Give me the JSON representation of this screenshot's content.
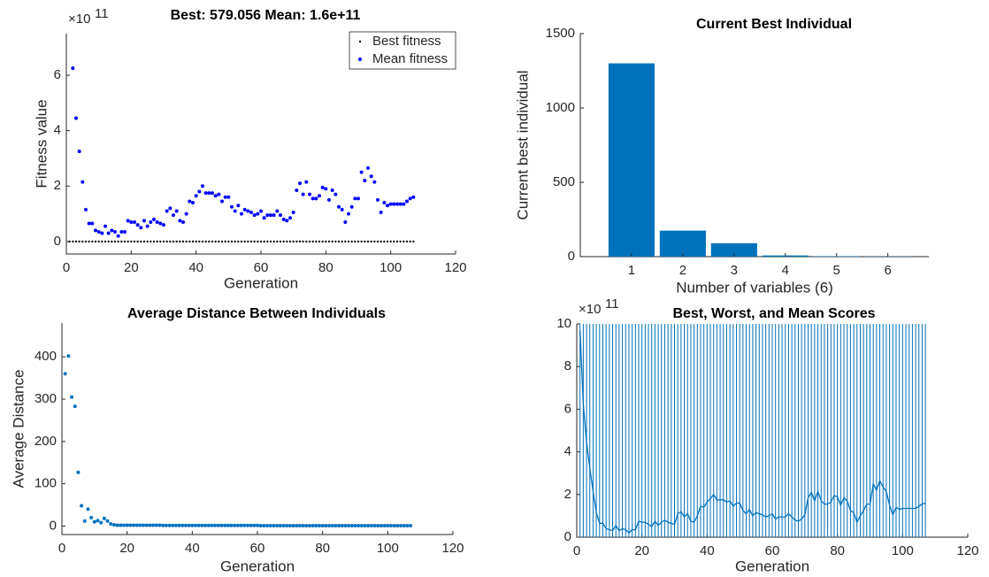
{
  "chart_data": [
    {
      "type": "scatter",
      "title": "Best: 579.056 Mean: 1.6e+11",
      "xlabel": "Generation",
      "ylabel": "Fitness value",
      "exponent_base": "×10",
      "exponent_power": "11",
      "legend": "upper right",
      "x": [
        1,
        2,
        3,
        4,
        5,
        6,
        7,
        8,
        9,
        10,
        11,
        12,
        13,
        14,
        15,
        16,
        17,
        18,
        19,
        20,
        21,
        22,
        23,
        24,
        25,
        26,
        27,
        28,
        29,
        30,
        31,
        32,
        33,
        34,
        35,
        36,
        37,
        38,
        39,
        40,
        41,
        42,
        43,
        44,
        45,
        46,
        47,
        48,
        49,
        50,
        51,
        52,
        53,
        54,
        55,
        56,
        57,
        58,
        59,
        60,
        61,
        62,
        63,
        64,
        65,
        66,
        67,
        68,
        69,
        70,
        71,
        72,
        73,
        74,
        75,
        76,
        77,
        78,
        79,
        80,
        81,
        82,
        83,
        84,
        85,
        86,
        87,
        88,
        89,
        90,
        91,
        92,
        93,
        94,
        95,
        96,
        97,
        98,
        99,
        100,
        101,
        102,
        103,
        104,
        105,
        106,
        107
      ],
      "series": [
        {
          "name": "Best fitness",
          "color": "#000000",
          "marker_size": 1.2,
          "values": [
            0,
            0,
            0,
            0,
            0,
            0,
            0,
            0,
            0,
            0,
            0,
            0,
            0,
            0,
            0,
            0,
            0,
            0,
            0,
            0,
            0,
            0,
            0,
            0,
            0,
            0,
            0,
            0,
            0,
            0,
            0,
            0,
            0,
            0,
            0,
            0,
            0,
            0,
            0,
            0,
            0,
            0,
            0,
            0,
            0,
            0,
            0,
            0,
            0,
            0,
            0,
            0,
            0,
            0,
            0,
            0,
            0,
            0,
            0,
            0,
            0,
            0,
            0,
            0,
            0,
            0,
            0,
            0,
            0,
            0,
            0,
            0,
            0,
            0,
            0,
            0,
            0,
            0,
            0,
            0,
            0,
            0,
            0,
            0,
            0,
            0,
            0,
            0,
            0,
            0,
            0,
            0,
            0,
            0,
            0,
            0,
            0,
            0,
            0,
            0,
            0,
            0,
            0,
            0,
            0,
            0,
            0
          ]
        },
        {
          "name": "Mean fitness",
          "color": "#0000ff",
          "marker_size": 2,
          "values": [
            null,
            6.25,
            4.45,
            3.25,
            2.15,
            1.15,
            0.65,
            0.65,
            0.4,
            0.35,
            0.3,
            0.55,
            0.3,
            0.4,
            0.35,
            0.2,
            0.35,
            0.35,
            0.75,
            0.7,
            0.7,
            0.6,
            0.5,
            0.75,
            0.55,
            0.7,
            0.8,
            0.7,
            0.65,
            0.6,
            1.1,
            1.2,
            0.95,
            1.1,
            0.75,
            0.7,
            1.0,
            1.45,
            1.4,
            1.65,
            1.8,
            2.0,
            1.75,
            1.75,
            1.75,
            1.65,
            1.7,
            1.45,
            1.6,
            1.6,
            1.25,
            1.1,
            1.3,
            1.0,
            1.15,
            1.1,
            1.05,
            0.95,
            1.0,
            1.1,
            0.85,
            0.95,
            0.95,
            0.95,
            1.1,
            0.95,
            0.8,
            0.75,
            0.85,
            1.05,
            1.85,
            2.1,
            1.7,
            2.15,
            1.7,
            1.55,
            1.55,
            1.65,
            1.95,
            1.9,
            1.5,
            1.85,
            1.7,
            1.25,
            1.15,
            0.7,
            1.0,
            1.25,
            1.55,
            1.55,
            2.5,
            2.2,
            2.65,
            2.35,
            2.15,
            1.5,
            1.05,
            1.4,
            1.3,
            1.35,
            1.35,
            1.35,
            1.35,
            1.35,
            1.45,
            1.55,
            1.6
          ]
        }
      ],
      "xlim": [
        0,
        120
      ],
      "xticks": [
        0,
        20,
        40,
        60,
        80,
        100,
        120
      ],
      "ylim": [
        -0.45,
        7.5
      ],
      "yticks": [
        0,
        2,
        4,
        6
      ]
    },
    {
      "type": "bar",
      "title": "Current Best Individual",
      "xlabel": "Number of variables (6)",
      "ylabel": "Current best individual",
      "categories": [
        "1",
        "2",
        "3",
        "4",
        "5",
        "6"
      ],
      "values": [
        1300,
        175,
        90,
        8,
        3,
        2
      ],
      "color": "#0072bd",
      "ylim": [
        0,
        1500
      ],
      "yticks": [
        0,
        500,
        1000,
        1500
      ]
    },
    {
      "type": "scatter",
      "title": "Average Distance Between Individuals",
      "xlabel": "Generation",
      "ylabel": "Average Distance",
      "x": [
        1,
        2,
        3,
        4,
        5,
        6,
        7,
        8,
        9,
        10,
        11,
        12,
        13,
        14,
        15,
        16,
        17,
        18,
        19,
        20,
        21,
        22,
        23,
        24,
        25,
        26,
        27,
        28,
        29,
        30,
        31,
        32,
        33,
        34,
        35,
        36,
        37,
        38,
        39,
        40,
        41,
        42,
        43,
        44,
        45,
        46,
        47,
        48,
        49,
        50,
        51,
        52,
        53,
        54,
        55,
        56,
        57,
        58,
        59,
        60,
        61,
        62,
        63,
        64,
        65,
        66,
        67,
        68,
        69,
        70,
        71,
        72,
        73,
        74,
        75,
        76,
        77,
        78,
        79,
        80,
        81,
        82,
        83,
        84,
        85,
        86,
        87,
        88,
        89,
        90,
        91,
        92,
        93,
        94,
        95,
        96,
        97,
        98,
        99,
        100,
        101,
        102,
        103,
        104,
        105,
        106,
        107
      ],
      "series": [
        {
          "color": "#0072bd",
          "marker_size": 2,
          "values": [
            360,
            402,
            305,
            283,
            127,
            48,
            12,
            40,
            20,
            10,
            13,
            8,
            18,
            12,
            5,
            3,
            2,
            2,
            2,
            2,
            2,
            2,
            2,
            2,
            2,
            2,
            2,
            2,
            2,
            2,
            1.5,
            1.5,
            1.5,
            1.5,
            1.5,
            1.5,
            1.5,
            1.5,
            1.5,
            1.5,
            1.5,
            1.5,
            1.5,
            1.5,
            1.5,
            1.5,
            1.5,
            1.5,
            1.5,
            1.5,
            1.5,
            1.5,
            1.5,
            1.5,
            1.5,
            1.5,
            1.5,
            1.5,
            1.5,
            1.5,
            1,
            1,
            1,
            1,
            1,
            1,
            1,
            1,
            1,
            1,
            1,
            1,
            1,
            1,
            1,
            1,
            1,
            1,
            1,
            1,
            1,
            1,
            1,
            1,
            1,
            1,
            1,
            1,
            1,
            1,
            1,
            1,
            1,
            1,
            1,
            1,
            1,
            1,
            1,
            1,
            1,
            1,
            1,
            1,
            1,
            1,
            1
          ]
        }
      ],
      "xlim": [
        0,
        120
      ],
      "xticks": [
        0,
        20,
        40,
        60,
        80,
        100,
        120
      ],
      "ylim": [
        -20,
        480
      ],
      "yticks": [
        0,
        100,
        200,
        300,
        400
      ]
    },
    {
      "type": "line",
      "title": "Best, Worst, and Mean Scores",
      "xlabel": "Generation",
      "exponent_base": "×10",
      "exponent_power": "11",
      "x": [
        1,
        2,
        3,
        4,
        5,
        6,
        7,
        8,
        9,
        10,
        11,
        12,
        13,
        14,
        15,
        16,
        17,
        18,
        19,
        20,
        21,
        22,
        23,
        24,
        25,
        26,
        27,
        28,
        29,
        30,
        31,
        32,
        33,
        34,
        35,
        36,
        37,
        38,
        39,
        40,
        41,
        42,
        43,
        44,
        45,
        46,
        47,
        48,
        49,
        50,
        51,
        52,
        53,
        54,
        55,
        56,
        57,
        58,
        59,
        60,
        61,
        62,
        63,
        64,
        65,
        66,
        67,
        68,
        69,
        70,
        71,
        72,
        73,
        74,
        75,
        76,
        77,
        78,
        79,
        80,
        81,
        82,
        83,
        84,
        85,
        86,
        87,
        88,
        89,
        90,
        91,
        92,
        93,
        94,
        95,
        96,
        97,
        98,
        99,
        100,
        101,
        102,
        103,
        104,
        105,
        106,
        107
      ],
      "series": [
        {
          "color": "#0072bd",
          "style": "stem",
          "values": [
            10,
            10,
            10,
            10,
            10,
            10,
            10,
            10,
            10,
            10,
            10,
            10,
            10,
            10,
            10,
            10,
            10,
            10,
            10,
            10,
            10,
            10,
            10,
            10,
            10,
            10,
            10,
            10,
            10,
            10,
            10,
            10,
            10,
            10,
            10,
            10,
            10,
            10,
            10,
            10,
            10,
            10,
            10,
            10,
            10,
            10,
            10,
            10,
            10,
            10,
            10,
            10,
            10,
            10,
            10,
            10,
            10,
            10,
            10,
            10,
            10,
            10,
            10,
            10,
            10,
            10,
            10,
            10,
            10,
            10,
            10,
            10,
            10,
            10,
            10,
            10,
            10,
            10,
            10,
            10,
            10,
            10,
            10,
            10,
            10,
            10,
            10,
            10,
            10,
            10,
            10,
            10,
            10,
            10,
            10,
            10,
            10,
            10,
            10,
            10,
            10,
            10,
            10,
            10,
            10,
            10,
            10
          ]
        },
        {
          "color": "#0072bd",
          "style": "line",
          "values": [
            9.7,
            6.25,
            4.45,
            3.25,
            2.15,
            1.15,
            0.65,
            0.65,
            0.4,
            0.35,
            0.3,
            0.55,
            0.3,
            0.4,
            0.35,
            0.2,
            0.35,
            0.35,
            0.75,
            0.7,
            0.7,
            0.6,
            0.5,
            0.75,
            0.55,
            0.7,
            0.8,
            0.7,
            0.65,
            0.6,
            1.1,
            1.2,
            0.95,
            1.1,
            0.75,
            0.7,
            1.0,
            1.45,
            1.4,
            1.65,
            1.8,
            2.0,
            1.75,
            1.75,
            1.75,
            1.65,
            1.7,
            1.45,
            1.6,
            1.6,
            1.25,
            1.1,
            1.3,
            1.0,
            1.15,
            1.1,
            1.05,
            0.95,
            1.0,
            1.1,
            0.85,
            0.95,
            0.95,
            0.95,
            1.1,
            0.95,
            0.8,
            0.75,
            0.85,
            1.05,
            1.85,
            2.1,
            1.7,
            2.15,
            1.7,
            1.55,
            1.55,
            1.65,
            1.95,
            1.9,
            1.5,
            1.85,
            1.7,
            1.25,
            1.15,
            0.7,
            1.0,
            1.25,
            1.55,
            1.55,
            2.5,
            2.2,
            2.65,
            2.35,
            2.15,
            1.5,
            1.05,
            1.4,
            1.3,
            1.35,
            1.35,
            1.35,
            1.35,
            1.35,
            1.45,
            1.55,
            1.6
          ]
        }
      ],
      "xlim": [
        0,
        120
      ],
      "xticks": [
        0,
        20,
        40,
        60,
        80,
        100,
        120
      ],
      "ylim": [
        0,
        10
      ],
      "yticks": [
        0,
        2,
        4,
        6,
        8,
        10
      ]
    }
  ]
}
